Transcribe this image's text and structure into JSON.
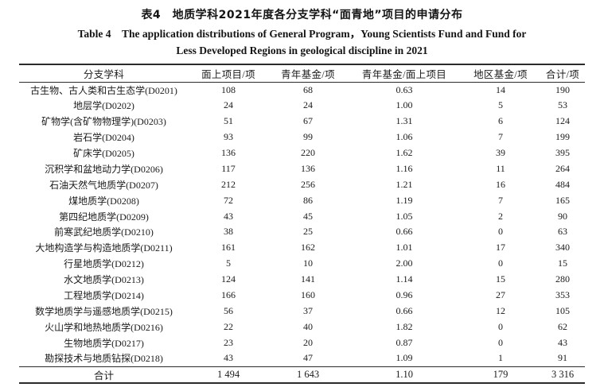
{
  "titles": {
    "cn": "表4　地质学科2021年度各分支学科“面青地”项目的申请分布",
    "en_line1": "Table 4　The application distributions of General Program，Young Scientists Fund and Fund for",
    "en_line2": "Less Developed Regions in geological discipline in 2021"
  },
  "chart_data": {
    "type": "table",
    "title": "表4 地质学科2021年度各分支学科“面青地”项目的申请分布",
    "columns": [
      "分支学科",
      "面上项目/项",
      "青年基金/项",
      "青年基金/面上项目",
      "地区基金/项",
      "合计/项"
    ],
    "rows": [
      [
        "古生物、古人类和古生态学(D0201)",
        "108",
        "68",
        "0.63",
        "14",
        "190"
      ],
      [
        "地层学(D0202)",
        "24",
        "24",
        "1.00",
        "5",
        "53"
      ],
      [
        "矿物学(含矿物物理学)(D0203)",
        "51",
        "67",
        "1.31",
        "6",
        "124"
      ],
      [
        "岩石学(D0204)",
        "93",
        "99",
        "1.06",
        "7",
        "199"
      ],
      [
        "矿床学(D0205)",
        "136",
        "220",
        "1.62",
        "39",
        "395"
      ],
      [
        "沉积学和盆地动力学(D0206)",
        "117",
        "136",
        "1.16",
        "11",
        "264"
      ],
      [
        "石油天然气地质学(D0207)",
        "212",
        "256",
        "1.21",
        "16",
        "484"
      ],
      [
        "煤地质学(D0208)",
        "72",
        "86",
        "1.19",
        "7",
        "165"
      ],
      [
        "第四纪地质学(D0209)",
        "43",
        "45",
        "1.05",
        "2",
        "90"
      ],
      [
        "前寒武纪地质学(D0210)",
        "38",
        "25",
        "0.66",
        "0",
        "63"
      ],
      [
        "大地构造学与构造地质学(D0211)",
        "161",
        "162",
        "1.01",
        "17",
        "340"
      ],
      [
        "行星地质学(D0212)",
        "5",
        "10",
        "2.00",
        "0",
        "15"
      ],
      [
        "水文地质学(D0213)",
        "124",
        "141",
        "1.14",
        "15",
        "280"
      ],
      [
        "工程地质学(D0214)",
        "166",
        "160",
        "0.96",
        "27",
        "353"
      ],
      [
        "数学地质学与遥感地质学(D0215)",
        "56",
        "37",
        "0.66",
        "12",
        "105"
      ],
      [
        "火山学和地热地质学(D0216)",
        "22",
        "40",
        "1.82",
        "0",
        "62"
      ],
      [
        "生物地质学(D0217)",
        "23",
        "20",
        "0.87",
        "0",
        "43"
      ],
      [
        "勘探技术与地质钻探(D0218)",
        "43",
        "47",
        "1.09",
        "1",
        "91"
      ]
    ],
    "total_row": [
      "合计",
      "1 494",
      "1 643",
      "1.10",
      "179",
      "3 316"
    ]
  }
}
